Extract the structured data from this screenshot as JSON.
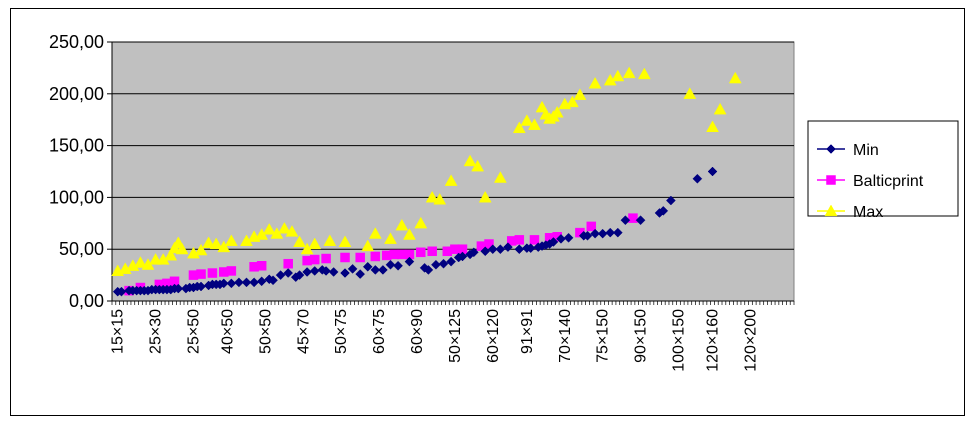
{
  "chart_data": {
    "type": "scatter",
    "title": "",
    "xlabel": "",
    "ylabel": "",
    "ylim": [
      0,
      250
    ],
    "y_ticks": [
      "0,00",
      "50,00",
      "100,00",
      "150,00",
      "200,00",
      "250,00"
    ],
    "y_tick_values": [
      0,
      50,
      100,
      150,
      200,
      250
    ],
    "x_tick_labels": [
      {
        "i": 1,
        "label": "15×15"
      },
      {
        "i": 11,
        "label": "25×30"
      },
      {
        "i": 21,
        "label": "25×50"
      },
      {
        "i": 30,
        "label": "40×50"
      },
      {
        "i": 40,
        "label": "50×50"
      },
      {
        "i": 50,
        "label": "45×70"
      },
      {
        "i": 60,
        "label": "50×75"
      },
      {
        "i": 70,
        "label": "60×75"
      },
      {
        "i": 80,
        "label": "60×90"
      },
      {
        "i": 90,
        "label": "50×125"
      },
      {
        "i": 100,
        "label": "60×120"
      },
      {
        "i": 109,
        "label": "91×91"
      },
      {
        "i": 119,
        "label": "70×140"
      },
      {
        "i": 129,
        "label": "75×150"
      },
      {
        "i": 139,
        "label": "90×150"
      },
      {
        "i": 149,
        "label": "100×150"
      },
      {
        "i": 158,
        "label": "120×160"
      },
      {
        "i": 168,
        "label": "120×200"
      }
    ],
    "x_count": 180,
    "grid": true,
    "plot_background": "#c0c0c0",
    "legend_position": "right",
    "series": [
      {
        "name": "Min",
        "color": "#000080",
        "marker": "diamond",
        "points": [
          [
            1,
            9
          ],
          [
            2,
            9
          ],
          [
            4,
            10
          ],
          [
            5,
            10
          ],
          [
            6,
            10
          ],
          [
            7,
            10
          ],
          [
            8,
            10
          ],
          [
            9,
            10
          ],
          [
            10,
            11
          ],
          [
            11,
            11
          ],
          [
            12,
            11
          ],
          [
            13,
            11
          ],
          [
            14,
            11
          ],
          [
            15,
            11
          ],
          [
            16,
            12
          ],
          [
            17,
            12
          ],
          [
            19,
            12
          ],
          [
            20,
            13
          ],
          [
            21,
            13
          ],
          [
            22,
            14
          ],
          [
            23,
            14
          ],
          [
            25,
            15
          ],
          [
            26,
            16
          ],
          [
            27,
            16
          ],
          [
            28,
            16
          ],
          [
            29,
            17
          ],
          [
            31,
            17
          ],
          [
            33,
            18
          ],
          [
            35,
            18
          ],
          [
            37,
            18
          ],
          [
            39,
            19
          ],
          [
            41,
            21
          ],
          [
            42,
            20
          ],
          [
            44,
            25
          ],
          [
            46,
            27
          ],
          [
            48,
            23
          ],
          [
            49,
            25
          ],
          [
            51,
            28
          ],
          [
            53,
            29
          ],
          [
            55,
            30
          ],
          [
            56,
            29
          ],
          [
            58,
            28
          ],
          [
            61,
            27
          ],
          [
            63,
            31
          ],
          [
            65,
            26
          ],
          [
            67,
            33
          ],
          [
            69,
            30
          ],
          [
            71,
            30
          ],
          [
            73,
            35
          ],
          [
            75,
            34
          ],
          [
            78,
            38
          ],
          [
            82,
            32
          ],
          [
            83,
            30
          ],
          [
            85,
            35
          ],
          [
            87,
            36
          ],
          [
            89,
            38
          ],
          [
            91,
            42
          ],
          [
            92,
            43
          ],
          [
            94,
            45
          ],
          [
            95,
            47
          ],
          [
            98,
            48
          ],
          [
            100,
            50
          ],
          [
            102,
            50
          ],
          [
            104,
            52
          ],
          [
            107,
            50
          ],
          [
            109,
            51
          ],
          [
            110,
            51
          ],
          [
            112,
            52
          ],
          [
            113,
            53
          ],
          [
            114,
            54
          ],
          [
            115,
            55
          ],
          [
            116,
            57
          ],
          [
            118,
            60
          ],
          [
            120,
            61
          ],
          [
            124,
            63
          ],
          [
            125,
            63
          ],
          [
            127,
            65
          ],
          [
            129,
            65
          ],
          [
            131,
            66
          ],
          [
            133,
            66
          ],
          [
            135,
            78
          ],
          [
            139,
            78
          ],
          [
            144,
            85
          ],
          [
            145,
            87
          ],
          [
            147,
            97
          ],
          [
            154,
            118
          ],
          [
            158,
            125
          ]
        ]
      },
      {
        "name": "Balticprint",
        "color": "#ff00ff",
        "marker": "square",
        "points": [
          [
            4,
            10
          ],
          [
            7,
            13
          ],
          [
            12,
            16
          ],
          [
            14,
            17
          ],
          [
            16,
            19
          ],
          [
            21,
            25
          ],
          [
            23,
            26
          ],
          [
            26,
            27
          ],
          [
            29,
            28
          ],
          [
            31,
            29
          ],
          [
            37,
            33
          ],
          [
            39,
            34
          ],
          [
            46,
            36
          ],
          [
            51,
            39
          ],
          [
            53,
            40
          ],
          [
            56,
            41
          ],
          [
            61,
            42
          ],
          [
            65,
            42
          ],
          [
            69,
            43
          ],
          [
            72,
            44
          ],
          [
            74,
            45
          ],
          [
            76,
            45
          ],
          [
            78,
            45
          ],
          [
            81,
            47
          ],
          [
            84,
            48
          ],
          [
            88,
            48
          ],
          [
            90,
            50
          ],
          [
            92,
            50
          ],
          [
            97,
            53
          ],
          [
            99,
            55
          ],
          [
            105,
            58
          ],
          [
            107,
            59
          ],
          [
            111,
            59
          ],
          [
            115,
            61
          ],
          [
            117,
            62
          ],
          [
            123,
            66
          ],
          [
            126,
            72
          ],
          [
            137,
            80
          ]
        ]
      },
      {
        "name": "Max",
        "color": "#ffff00",
        "marker": "triangle",
        "points": [
          [
            1,
            29
          ],
          [
            3,
            31
          ],
          [
            5,
            34
          ],
          [
            7,
            37
          ],
          [
            9,
            35
          ],
          [
            11,
            40
          ],
          [
            13,
            40
          ],
          [
            15,
            44
          ],
          [
            16,
            51
          ],
          [
            17,
            56
          ],
          [
            18,
            50
          ],
          [
            21,
            46
          ],
          [
            23,
            49
          ],
          [
            25,
            56
          ],
          [
            27,
            55
          ],
          [
            29,
            52
          ],
          [
            31,
            58
          ],
          [
            35,
            58
          ],
          [
            37,
            62
          ],
          [
            39,
            64
          ],
          [
            41,
            69
          ],
          [
            43,
            65
          ],
          [
            45,
            70
          ],
          [
            47,
            67
          ],
          [
            49,
            57
          ],
          [
            51,
            50
          ],
          [
            53,
            55
          ],
          [
            57,
            58
          ],
          [
            61,
            57
          ],
          [
            67,
            53
          ],
          [
            69,
            65
          ],
          [
            73,
            60
          ],
          [
            76,
            73
          ],
          [
            78,
            64
          ],
          [
            81,
            75
          ],
          [
            84,
            100
          ],
          [
            86,
            98
          ],
          [
            89,
            116
          ],
          [
            94,
            135
          ],
          [
            96,
            130
          ],
          [
            98,
            100
          ],
          [
            102,
            119
          ],
          [
            107,
            167
          ],
          [
            109,
            174
          ],
          [
            111,
            170
          ],
          [
            113,
            187
          ],
          [
            114,
            180
          ],
          [
            115,
            176
          ],
          [
            116,
            178
          ],
          [
            117,
            182
          ],
          [
            119,
            190
          ],
          [
            121,
            192
          ],
          [
            123,
            199
          ],
          [
            127,
            210
          ],
          [
            131,
            213
          ],
          [
            133,
            217
          ],
          [
            136,
            220
          ],
          [
            140,
            219
          ],
          [
            152,
            200
          ],
          [
            158,
            168
          ],
          [
            160,
            185
          ],
          [
            164,
            215
          ]
        ]
      }
    ]
  }
}
